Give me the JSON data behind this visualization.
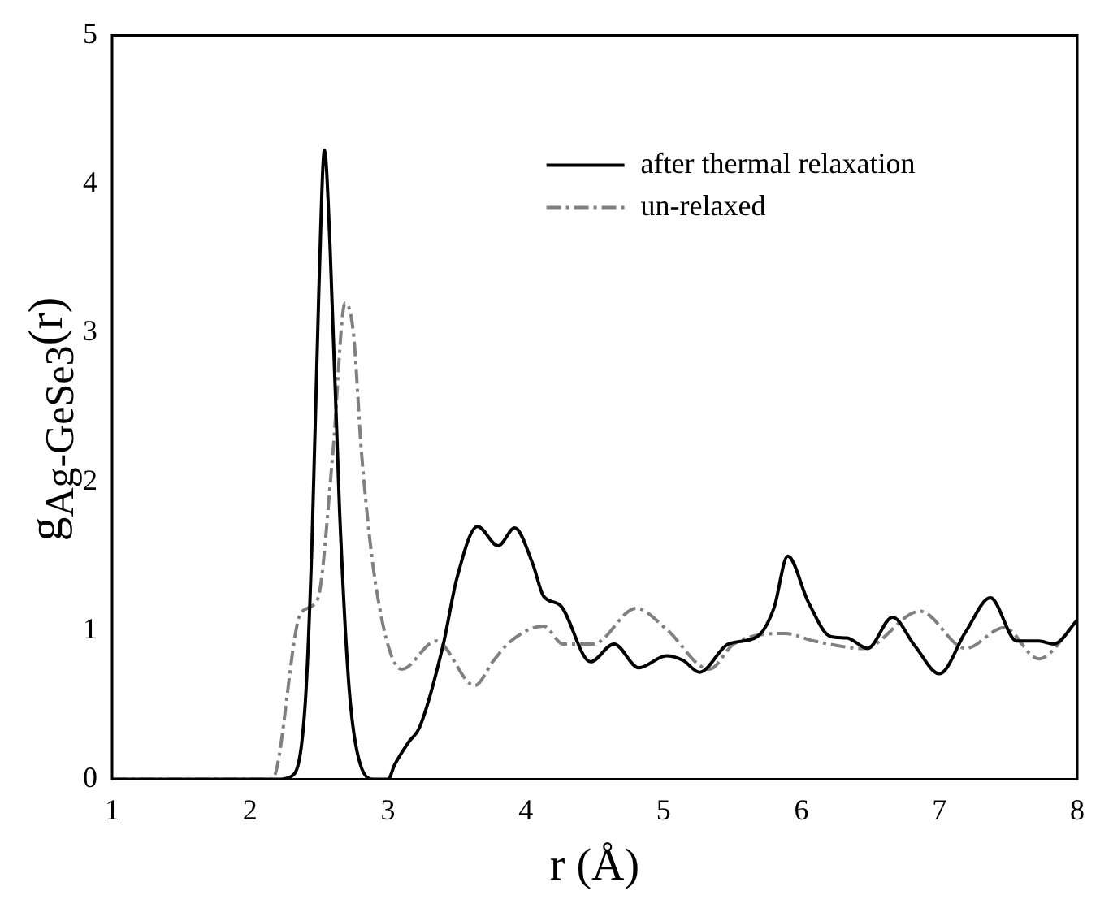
{
  "chart_data": {
    "type": "line",
    "xlabel": "r (Å)",
    "ylabel": "g$_{Ag-GeSe3}$(r)",
    "xlim": [
      1,
      8
    ],
    "xticks": [
      1,
      2,
      3,
      4,
      5,
      6,
      7,
      8
    ],
    "ylim": [
      0,
      5
    ],
    "yticks": [
      0,
      1,
      2,
      3,
      4,
      5
    ],
    "grid": false,
    "legend": "top right",
    "marker": "none",
    "series": [
      {
        "name": "after thermal relaxation",
        "color": "#000000",
        "line_style": "solid",
        "x": [
          1,
          2.2,
          2.3,
          2.4,
          2.45,
          2.5,
          2.54,
          2.58,
          2.65,
          2.72,
          2.8,
          2.9,
          3.0,
          3.05,
          3.15,
          3.23,
          3.4,
          3.5,
          3.65,
          3.8,
          3.92,
          4.05,
          4.13,
          4.25,
          4.47,
          4.64,
          4.82,
          5.02,
          5.14,
          5.26,
          5.47,
          5.68,
          5.8,
          5.9,
          6.05,
          6.21,
          6.33,
          6.48,
          6.66,
          6.82,
          7.0,
          7.19,
          7.37,
          7.56,
          7.72,
          7.83,
          8.0
        ],
        "values": [
          0,
          0,
          0.02,
          0.5,
          1.6,
          3.3,
          4.23,
          3.6,
          1.8,
          0.6,
          0.1,
          0,
          0,
          0.1,
          0.25,
          0.35,
          0.9,
          1.35,
          1.7,
          1.57,
          1.69,
          1.45,
          1.23,
          1.17,
          0.79,
          0.91,
          0.75,
          0.83,
          0.8,
          0.72,
          0.91,
          0.96,
          1.15,
          1.5,
          1.19,
          0.96,
          0.95,
          0.88,
          1.09,
          0.9,
          0.71,
          0.99,
          1.22,
          0.93,
          0.93,
          0.91,
          1.07
        ]
      },
      {
        "name": "un-relaxed",
        "color": "#808080",
        "line_style": "dashed",
        "x": [
          1,
          2.16,
          2.37,
          2.49,
          2.6,
          2.69,
          2.75,
          2.81,
          2.92,
          3.1,
          3.35,
          3.63,
          3.76,
          3.88,
          4.13,
          4.27,
          4.49,
          4.8,
          5.02,
          5.33,
          5.51,
          5.88,
          6.09,
          6.45,
          6.86,
          7.19,
          7.47,
          7.72,
          8.0
        ],
        "values": [
          0,
          0,
          1.12,
          1.21,
          2.18,
          3.2,
          3.0,
          2.18,
          1.26,
          0.74,
          0.93,
          0.63,
          0.79,
          0.92,
          1.03,
          0.91,
          0.91,
          1.15,
          1.01,
          0.74,
          0.91,
          0.98,
          0.93,
          0.88,
          1.13,
          0.88,
          1.02,
          0.81,
          1.07
        ]
      }
    ]
  }
}
